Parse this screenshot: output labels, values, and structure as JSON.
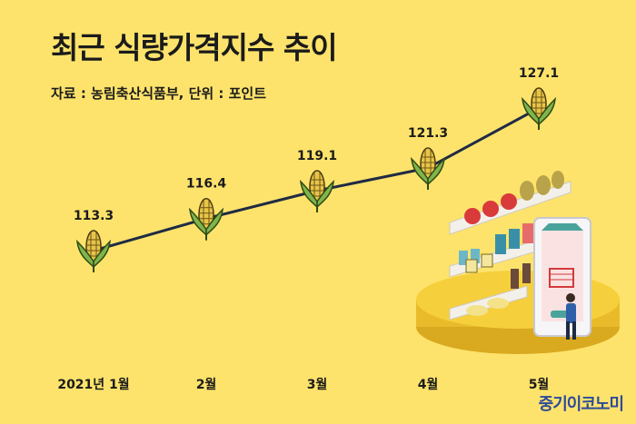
{
  "chart_data": {
    "type": "line",
    "title": "최근 식량가격지수 추이",
    "subtitle": "자료 : 농림축산식품부, 단위 : 포인트",
    "categories": [
      "2021년 1월",
      "2월",
      "3월",
      "4월",
      "5월"
    ],
    "series": [
      {
        "values": [
          113.3,
          116.4,
          119.1,
          121.3,
          127.1
        ],
        "marker": "corn-icon"
      }
    ],
    "value_labels": [
      "113.3",
      "116.4",
      "119.1",
      "121.3",
      "127.1"
    ],
    "xlabel": "",
    "ylabel": "",
    "ylim": [
      110,
      130
    ],
    "grid": false,
    "legend": "none"
  },
  "colors": {
    "background": "#fde36b",
    "line": "#1f2a44",
    "corn_kernel": "#e8c548",
    "corn_leaf": "#7fb54a",
    "brand": "#2d4a9a"
  },
  "decor": {
    "illustration": "grocery-shelf-illustration"
  },
  "brand": "중기이코노미"
}
